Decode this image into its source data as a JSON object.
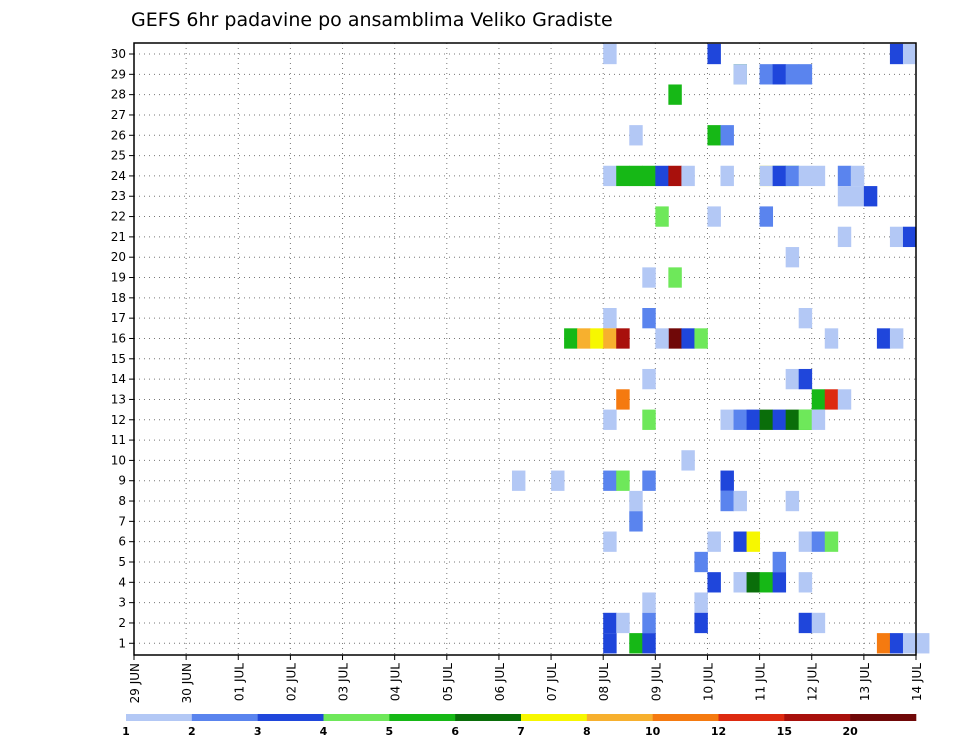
{
  "chart_data": {
    "type": "heatmap",
    "title": "GEFS 6hr padavine po ansamblima Veliko Gradiste",
    "members": [
      1,
      2,
      3,
      4,
      5,
      6,
      7,
      8,
      9,
      10,
      11,
      12,
      13,
      14,
      15,
      16,
      17,
      18,
      19,
      20,
      21,
      22,
      23,
      24,
      25,
      26,
      27,
      28,
      29,
      30
    ],
    "date_labels": [
      "29 JUN",
      "30 JUN",
      "01 JUL",
      "02 JUL",
      "03 JUL",
      "04 JUL",
      "05 JUL",
      "06 JUL",
      "07 JUL",
      "08 JUL",
      "09 JUL",
      "10 JUL",
      "11 JUL",
      "12 JUL",
      "13 JUL",
      "14 JUL"
    ],
    "legend": {
      "thresholds": [
        "1",
        "2",
        "3",
        "4",
        "5",
        "6",
        "7",
        "8",
        "10",
        "12",
        "15",
        "20"
      ],
      "colors": [
        "#b3c8f5",
        "#5a84ee",
        "#1f46db",
        "#6ee85a",
        "#16b816",
        "#0a6e0a",
        "#f7f700",
        "#f7b02e",
        "#f57a10",
        "#dd2a10",
        "#a8100c",
        "#700808"
      ]
    },
    "cells": [
      [
        30,
        8,
        0,
        1
      ],
      [
        30,
        9,
        4,
        3
      ],
      [
        30,
        12,
        6,
        3
      ],
      [
        30,
        12,
        7,
        1
      ],
      [
        29,
        9,
        6,
        5
      ],
      [
        29,
        10,
        2,
        1
      ],
      [
        29,
        10,
        7,
        2
      ],
      [
        29,
        11,
        0,
        2
      ],
      [
        29,
        11,
        1,
        3
      ],
      [
        29,
        11,
        2,
        2
      ],
      [
        28,
        8,
        5,
        5
      ],
      [
        26,
        7,
        6,
        1
      ],
      [
        26,
        9,
        4,
        5
      ],
      [
        26,
        9,
        5,
        2
      ],
      [
        24,
        8,
        0,
        1
      ],
      [
        24,
        8,
        1,
        5
      ],
      [
        24,
        8,
        2,
        5
      ],
      [
        24,
        8,
        3,
        5
      ],
      [
        24,
        8,
        4,
        3
      ],
      [
        24,
        8,
        5,
        11
      ],
      [
        24,
        8,
        6,
        1
      ],
      [
        24,
        9,
        5,
        1
      ],
      [
        24,
        10,
        4,
        7
      ],
      [
        24,
        10,
        5,
        4
      ],
      [
        24,
        10,
        6,
        4
      ],
      [
        24,
        11,
        0,
        1
      ],
      [
        24,
        11,
        1,
        3
      ],
      [
        24,
        11,
        2,
        2
      ],
      [
        24,
        11,
        3,
        1
      ],
      [
        24,
        11,
        6,
        2
      ],
      [
        24,
        11,
        7,
        1
      ],
      [
        24,
        12,
        0,
        1
      ],
      [
        23,
        12,
        2,
        1
      ],
      [
        23,
        12,
        3,
        1
      ],
      [
        23,
        12,
        4,
        3
      ],
      [
        22,
        9,
        0,
        4
      ],
      [
        22,
        9,
        4,
        1
      ],
      [
        22,
        10,
        4,
        2
      ],
      [
        21,
        12,
        2,
        1
      ],
      [
        21,
        12,
        6,
        1
      ],
      [
        21,
        12,
        7,
        3
      ],
      [
        20,
        10,
        6,
        1
      ],
      [
        19,
        7,
        7,
        1
      ],
      [
        19,
        8,
        5,
        4
      ],
      [
        17,
        7,
        7,
        2
      ],
      [
        17,
        8,
        0,
        1
      ],
      [
        17,
        11,
        3,
        1
      ],
      [
        16,
        7,
        1,
        5
      ],
      [
        16,
        7,
        2,
        8
      ],
      [
        16,
        7,
        3,
        7
      ],
      [
        16,
        7,
        4,
        8
      ],
      [
        16,
        7,
        5,
        11
      ],
      [
        16,
        8,
        5,
        12
      ],
      [
        16,
        8,
        6,
        3
      ],
      [
        16,
        8,
        7,
        4
      ],
      [
        16,
        9,
        0,
        1
      ],
      [
        16,
        11,
        5,
        1
      ],
      [
        16,
        12,
        5,
        3
      ],
      [
        16,
        12,
        6,
        1
      ],
      [
        14,
        7,
        7,
        1
      ],
      [
        14,
        10,
        6,
        1
      ],
      [
        14,
        10,
        7,
        3
      ],
      [
        13,
        7,
        5,
        9
      ],
      [
        13,
        12,
        0,
        5
      ],
      [
        13,
        12,
        1,
        10
      ],
      [
        13,
        12,
        2,
        1
      ],
      [
        12,
        7,
        7,
        4
      ],
      [
        12,
        8,
        0,
        1
      ],
      [
        12,
        10,
        1,
        1
      ],
      [
        12,
        10,
        2,
        2
      ],
      [
        12,
        10,
        3,
        3
      ],
      [
        12,
        10,
        4,
        6
      ],
      [
        12,
        10,
        5,
        3
      ],
      [
        12,
        10,
        6,
        6
      ],
      [
        12,
        10,
        7,
        5
      ],
      [
        12,
        11,
        3,
        4
      ],
      [
        12,
        11,
        4,
        1
      ],
      [
        11,
        14,
        7,
        1
      ],
      [
        11,
        15,
        0,
        2
      ],
      [
        10,
        9,
        2,
        1
      ],
      [
        9,
        6,
        1,
        1
      ],
      [
        9,
        7,
        0,
        1
      ],
      [
        9,
        7,
        7,
        2
      ],
      [
        9,
        8,
        0,
        2
      ],
      [
        9,
        8,
        1,
        4
      ],
      [
        9,
        10,
        1,
        3
      ],
      [
        8,
        7,
        6,
        1
      ],
      [
        8,
        10,
        1,
        2
      ],
      [
        8,
        10,
        2,
        1
      ],
      [
        8,
        10,
        6,
        1
      ],
      [
        7,
        7,
        6,
        2
      ],
      [
        6,
        8,
        0,
        1
      ],
      [
        6,
        10,
        0,
        1
      ],
      [
        6,
        10,
        2,
        3
      ],
      [
        6,
        10,
        3,
        7
      ],
      [
        6,
        11,
        3,
        1
      ],
      [
        6,
        11,
        4,
        2
      ],
      [
        6,
        11,
        5,
        4
      ],
      [
        5,
        9,
        3,
        2
      ],
      [
        5,
        11,
        1,
        2
      ],
      [
        4,
        9,
        6,
        1
      ],
      [
        4,
        9,
        7,
        1
      ],
      [
        4,
        10,
        0,
        3
      ],
      [
        4,
        10,
        2,
        1
      ],
      [
        4,
        10,
        3,
        6
      ],
      [
        4,
        10,
        4,
        5
      ],
      [
        4,
        10,
        5,
        3
      ],
      [
        4,
        11,
        3,
        1
      ],
      [
        3,
        7,
        7,
        1
      ],
      [
        3,
        8,
        7,
        1
      ],
      [
        2,
        8,
        0,
        3
      ],
      [
        2,
        8,
        1,
        1
      ],
      [
        2,
        7,
        7,
        2
      ],
      [
        2,
        9,
        3,
        3
      ],
      [
        2,
        11,
        3,
        3
      ],
      [
        2,
        11,
        4,
        1
      ],
      [
        1,
        7,
        6,
        5
      ],
      [
        1,
        7,
        7,
        3
      ],
      [
        1,
        8,
        0,
        3
      ],
      [
        1,
        13,
        1,
        9
      ],
      [
        1,
        13,
        2,
        3
      ],
      [
        1,
        13,
        3,
        1
      ],
      [
        1,
        13,
        4,
        1
      ]
    ]
  }
}
